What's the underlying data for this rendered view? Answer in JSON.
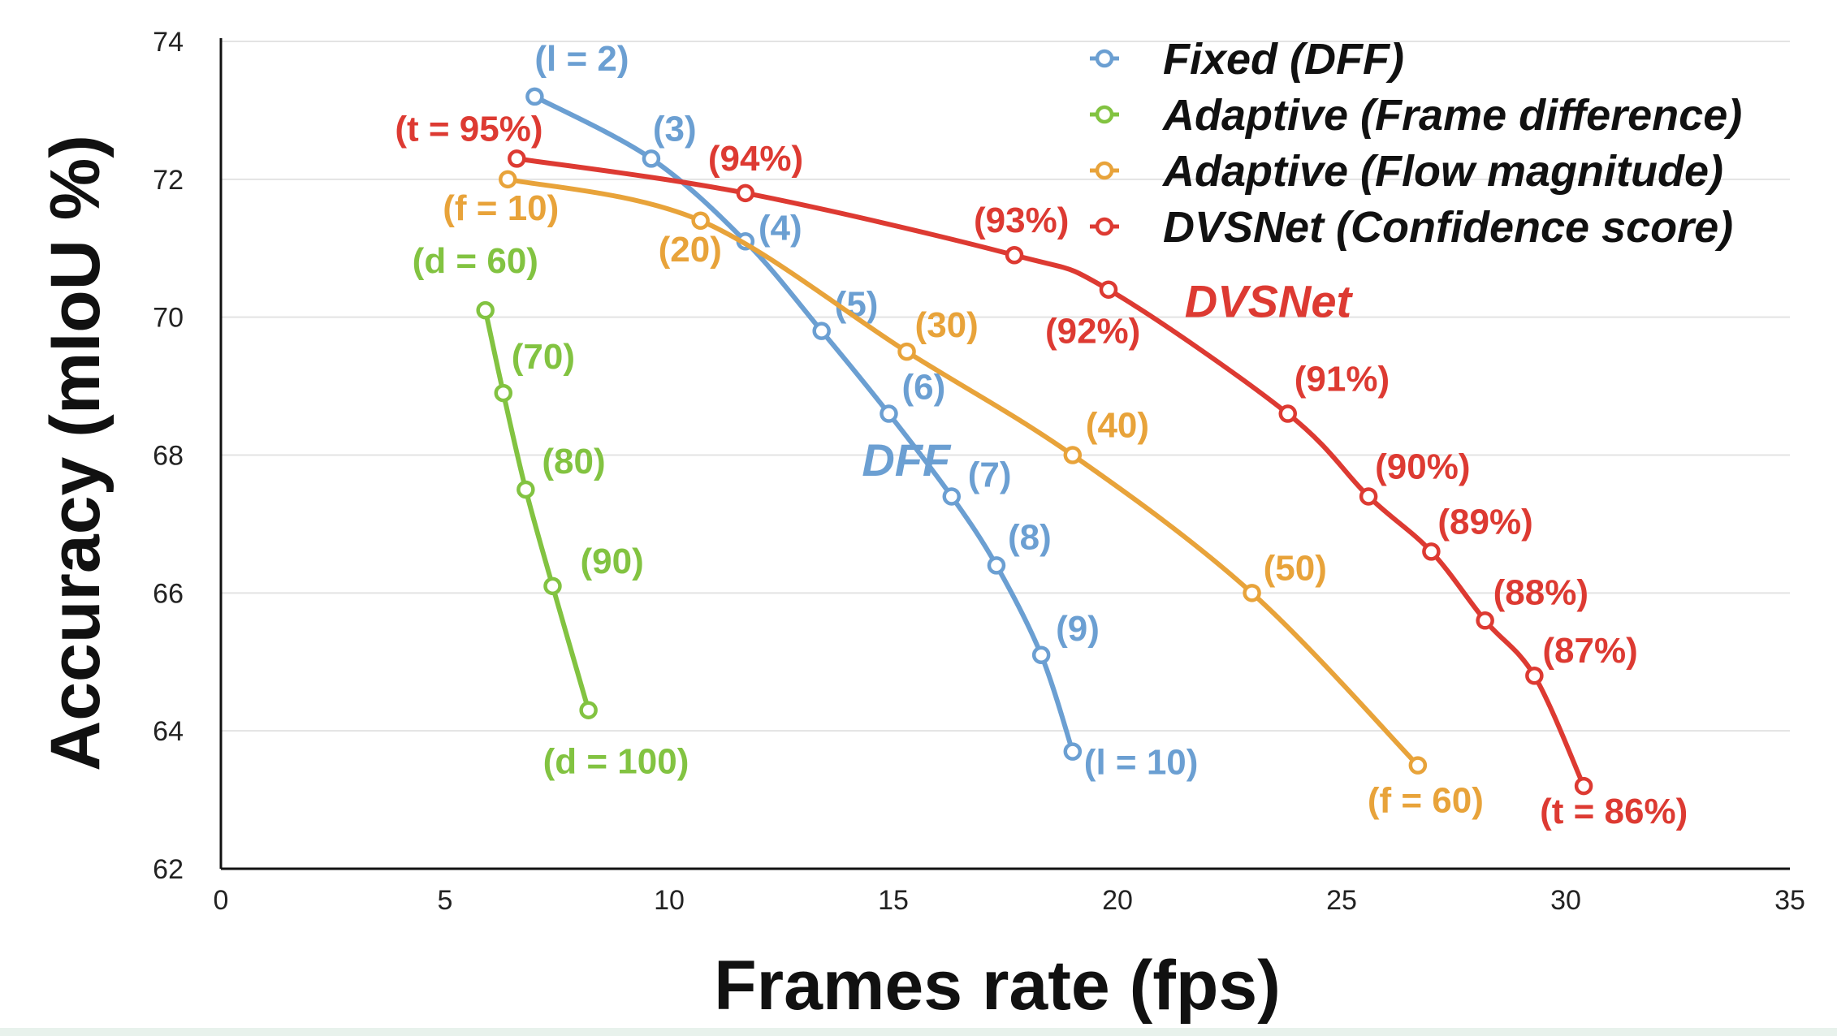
{
  "chart_data": {
    "type": "line",
    "title": "",
    "xlabel": "Frames rate (fps)",
    "ylabel": "Accuracy (mIoU %)",
    "xlim": [
      0,
      35
    ],
    "ylim": [
      62,
      74
    ],
    "xticks": [
      0,
      5,
      10,
      15,
      20,
      25,
      30,
      35
    ],
    "yticks": [
      62,
      64,
      66,
      68,
      70,
      72,
      74
    ],
    "grid": "horizontal",
    "legend_position": "top-right",
    "series": [
      {
        "name": "Fixed  (DFF)",
        "color": "#6b9fd2",
        "tag": "DFF",
        "tag_at": [
          14.3,
          67.7
        ],
        "points": [
          {
            "x": 7.0,
            "y": 73.2,
            "label": "(l = 2)"
          },
          {
            "x": 9.6,
            "y": 72.3,
            "label": "(3)"
          },
          {
            "x": 11.7,
            "y": 71.1,
            "label": "(4)"
          },
          {
            "x": 13.4,
            "y": 69.8,
            "label": "(5)"
          },
          {
            "x": 14.9,
            "y": 68.6,
            "label": "(6)"
          },
          {
            "x": 16.3,
            "y": 67.4,
            "label": "(7)"
          },
          {
            "x": 17.3,
            "y": 66.4,
            "label": "(8)"
          },
          {
            "x": 18.3,
            "y": 65.1,
            "label": "(9)"
          },
          {
            "x": 19.0,
            "y": 63.7,
            "label": "(l = 10)"
          }
        ]
      },
      {
        "name": "Adaptive (Frame difference)",
        "color": "#82c341",
        "points": [
          {
            "x": 5.9,
            "y": 70.1,
            "label": "(d = 60)"
          },
          {
            "x": 6.3,
            "y": 68.9,
            "label": "(70)"
          },
          {
            "x": 6.8,
            "y": 67.5,
            "label": "(80)"
          },
          {
            "x": 7.4,
            "y": 66.1,
            "label": "(90)"
          },
          {
            "x": 8.2,
            "y": 64.3,
            "label": "(d = 100)"
          }
        ]
      },
      {
        "name": "Adaptive (Flow magnitude)",
        "color": "#e8a33a",
        "points": [
          {
            "x": 6.4,
            "y": 72.0,
            "label": "(f = 10)"
          },
          {
            "x": 10.7,
            "y": 71.4,
            "label": "(20)"
          },
          {
            "x": 15.3,
            "y": 69.5,
            "label": "(30)"
          },
          {
            "x": 19.0,
            "y": 68.0,
            "label": "(40)"
          },
          {
            "x": 23.0,
            "y": 66.0,
            "label": "(50)"
          },
          {
            "x": 26.7,
            "y": 63.5,
            "label": "(f = 60)"
          }
        ]
      },
      {
        "name": "DVSNet (Confidence score)",
        "color": "#dd3a32",
        "tag": "DVSNet",
        "tag_at": [
          21.5,
          70.0
        ],
        "points": [
          {
            "x": 6.6,
            "y": 72.3,
            "label": "(t = 95%)"
          },
          {
            "x": 11.7,
            "y": 71.8,
            "label": "(94%)"
          },
          {
            "x": 17.7,
            "y": 70.9,
            "label": "(93%)"
          },
          {
            "x": 19.8,
            "y": 70.4,
            "label": "(92%)"
          },
          {
            "x": 23.8,
            "y": 68.6,
            "label": "(91%)"
          },
          {
            "x": 25.6,
            "y": 67.4,
            "label": "(90%)"
          },
          {
            "x": 27.0,
            "y": 66.6,
            "label": "(89%)"
          },
          {
            "x": 28.2,
            "y": 65.6,
            "label": "(88%)"
          },
          {
            "x": 29.3,
            "y": 64.8,
            "label": "(87%)"
          },
          {
            "x": 30.4,
            "y": 63.2,
            "label": "(t = 86%)"
          }
        ]
      }
    ]
  }
}
